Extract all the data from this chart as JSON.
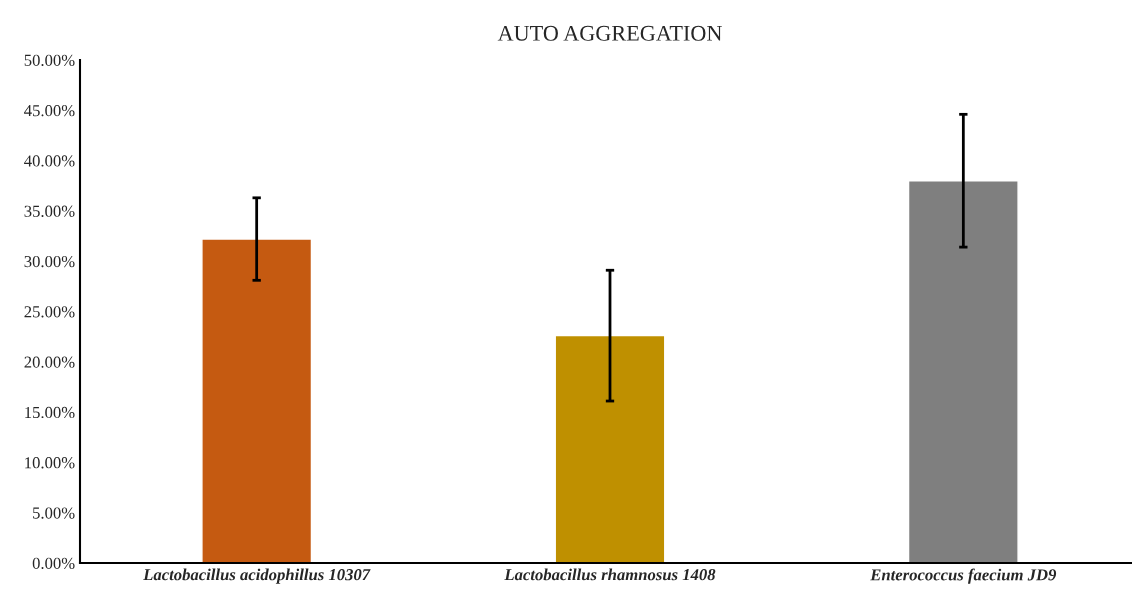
{
  "chart_data": {
    "type": "bar",
    "title": "AUTO AGGREGATION",
    "categories": [
      "Lactobacillus acidophillus 10307",
      "Lactobacillus rhamnosus 1408",
      "Enterococcus faecium JD9"
    ],
    "values": [
      32.2,
      22.6,
      38.0
    ],
    "colors": [
      "#c55a11",
      "#bf9000",
      "#7f7f7f"
    ],
    "errors": [
      4.1,
      6.5,
      6.6
    ],
    "ylim": [
      0,
      50
    ],
    "yticks": [
      {
        "value": 0,
        "label": "0.00%"
      },
      {
        "value": 5,
        "label": "5.00%"
      },
      {
        "value": 10,
        "label": "10.00%"
      },
      {
        "value": 15,
        "label": "15.00%"
      },
      {
        "value": 20,
        "label": "20.00%"
      },
      {
        "value": 25,
        "label": "25.00%"
      },
      {
        "value": 30,
        "label": "30.00%"
      },
      {
        "value": 35,
        "label": "35.00%"
      },
      {
        "value": 40,
        "label": "40.00%"
      },
      {
        "value": 45,
        "label": "45.00%"
      },
      {
        "value": 50,
        "label": "50.00%"
      }
    ],
    "grid": false
  }
}
